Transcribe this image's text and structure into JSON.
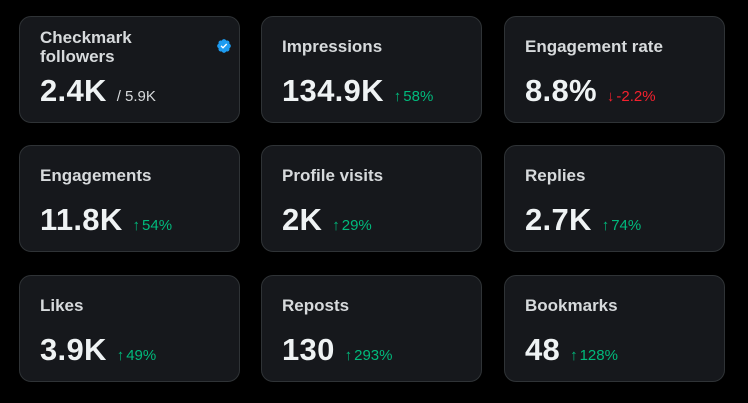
{
  "colors": {
    "background": "#000000",
    "card": "#16181c",
    "card_border": "#2f3336",
    "positive": "#00ba7c",
    "negative": "#f4212e",
    "verified": "#1d9bf0"
  },
  "cards": [
    {
      "label": "Checkmark followers",
      "value": "2.4K",
      "suffix": "/ 5.9K",
      "icon": "verified-badge-icon"
    },
    {
      "label": "Impressions",
      "value": "134.9K",
      "change": "58%",
      "direction": "up",
      "arrow": "↑"
    },
    {
      "label": "Engagement rate",
      "value": "8.8%",
      "change": "-2.2%",
      "direction": "down",
      "arrow": "↓"
    },
    {
      "label": "Engagements",
      "value": "11.8K",
      "change": "54%",
      "direction": "up",
      "arrow": "↑"
    },
    {
      "label": "Profile visits",
      "value": "2K",
      "change": "29%",
      "direction": "up",
      "arrow": "↑"
    },
    {
      "label": "Replies",
      "value": "2.7K",
      "change": "74%",
      "direction": "up",
      "arrow": "↑"
    },
    {
      "label": "Likes",
      "value": "3.9K",
      "change": "49%",
      "direction": "up",
      "arrow": "↑"
    },
    {
      "label": "Reposts",
      "value": "130",
      "change": "293%",
      "direction": "up",
      "arrow": "↑"
    },
    {
      "label": "Bookmarks",
      "value": "48",
      "change": "128%",
      "direction": "up",
      "arrow": "↑"
    }
  ]
}
